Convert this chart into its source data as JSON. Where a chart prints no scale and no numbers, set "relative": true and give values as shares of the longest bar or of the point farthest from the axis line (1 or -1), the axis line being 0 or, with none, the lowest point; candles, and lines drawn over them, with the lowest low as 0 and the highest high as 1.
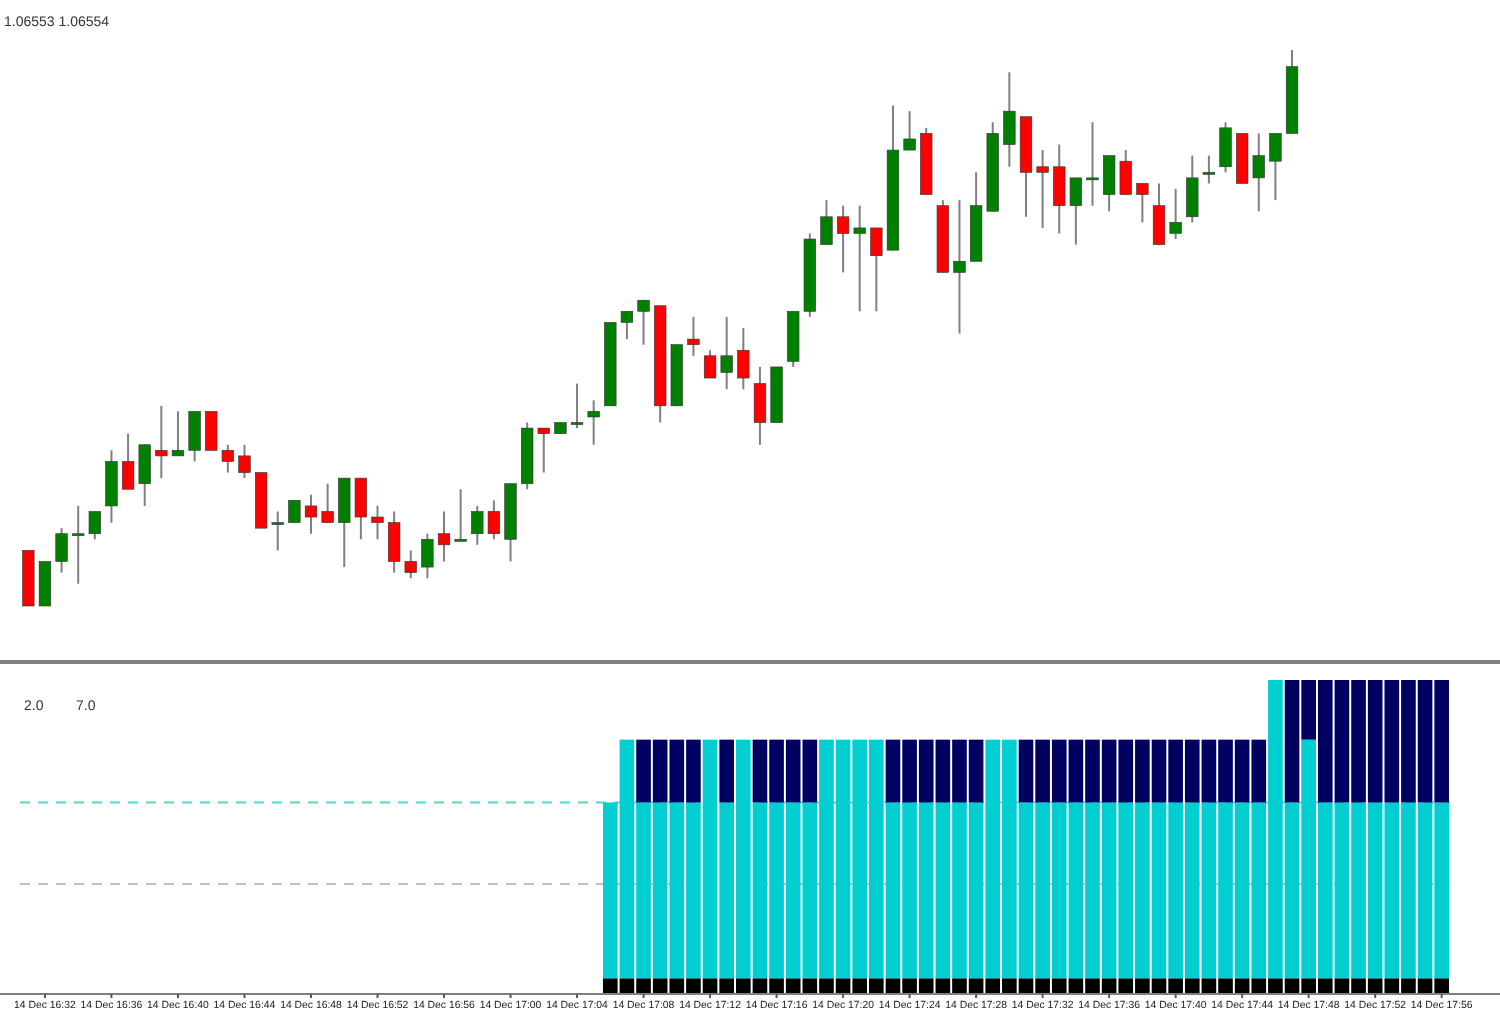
{
  "chart_data": [
    {
      "type": "candlestick",
      "relative": true,
      "tick_labels": false,
      "annotations": [
        "1.06553 1.06554"
      ],
      "categories": [
        null,
        null,
        null,
        null,
        null,
        null,
        null,
        null,
        null,
        null,
        null,
        null,
        null,
        null,
        null,
        null,
        null,
        null,
        null,
        null,
        null,
        null,
        null,
        null,
        null,
        null,
        null,
        null,
        null,
        null,
        null,
        null,
        null,
        null,
        null,
        null,
        null,
        null,
        null,
        null,
        null,
        null,
        null,
        null,
        null,
        null,
        null,
        null,
        null,
        null,
        null,
        null,
        null,
        null,
        null,
        null,
        null,
        null,
        null,
        null,
        null,
        null,
        null,
        null,
        null,
        null,
        null,
        null,
        null,
        null,
        null,
        null,
        null,
        null,
        null,
        null,
        null,
        null,
        null,
        null,
        null,
        null,
        null,
        null,
        null,
        null
      ],
      "ohlc": [
        [
          0.1,
          0.1,
          0,
          0.0
        ],
        [
          0.0,
          0.08,
          0,
          0.08
        ],
        [
          0.08,
          0.14,
          0.06,
          0.13
        ],
        [
          0.13,
          0.18,
          0.04,
          0.13
        ],
        [
          0.13,
          0.17,
          0.12,
          0.17
        ],
        [
          0.18,
          0.28,
          0.15,
          0.26
        ],
        [
          0.26,
          0.31,
          0.21,
          0.21
        ],
        [
          0.22,
          0.29,
          0.18,
          0.29
        ],
        [
          0.28,
          0.36,
          0.23,
          0.27
        ],
        [
          0.27,
          0.35,
          0.27,
          0.28
        ],
        [
          0.28,
          0.35,
          0.26,
          0.35
        ],
        [
          0.35,
          0.35,
          0.28,
          0.28
        ],
        [
          0.28,
          0.29,
          0.24,
          0.26
        ],
        [
          0.27,
          0.29,
          0.23,
          0.24
        ],
        [
          0.24,
          0.24,
          0.14,
          0.14
        ],
        [
          0.15,
          0.17,
          0.1,
          0.15
        ],
        [
          0.15,
          0.19,
          0.15,
          0.19
        ],
        [
          0.18,
          0.2,
          0.13,
          0.16
        ],
        [
          0.17,
          0.22,
          0.15,
          0.15
        ],
        [
          0.15,
          0.23,
          0.07,
          0.23
        ],
        [
          0.23,
          0.23,
          0.12,
          0.16
        ],
        [
          0.16,
          0.18,
          0.12,
          0.15
        ],
        [
          0.15,
          0.17,
          0.06,
          0.08
        ],
        [
          0.08,
          0.1,
          0.05,
          0.06
        ],
        [
          0.07,
          0.13,
          0.05,
          0.12
        ],
        [
          0.13,
          0.17,
          0.08,
          0.11
        ],
        [
          0.12,
          0.21,
          0.12,
          0.12
        ],
        [
          0.13,
          0.18,
          0.11,
          0.17
        ],
        [
          0.17,
          0.19,
          0.12,
          0.13
        ],
        [
          0.12,
          0.22,
          0.08,
          0.22
        ],
        [
          0.22,
          0.33,
          0.21,
          0.32
        ],
        [
          0.32,
          0.32,
          0.24,
          0.31
        ],
        [
          0.31,
          0.33,
          0.31,
          0.33
        ],
        [
          0.33,
          0.4,
          0.32,
          0.33
        ],
        [
          0.34,
          0.37,
          0.29,
          0.35
        ],
        [
          0.36,
          0.51,
          0.36,
          0.51
        ],
        [
          0.51,
          0.53,
          0.48,
          0.53
        ],
        [
          0.53,
          0.55,
          0.47,
          0.55
        ],
        [
          0.54,
          0.54,
          0.33,
          0.36
        ],
        [
          0.36,
          0.47,
          0.36,
          0.47
        ],
        [
          0.48,
          0.52,
          0.45,
          0.47
        ],
        [
          0.45,
          0.46,
          0.41,
          0.41
        ],
        [
          0.42,
          0.52,
          0.39,
          0.45
        ],
        [
          0.46,
          0.5,
          0.39,
          0.41
        ],
        [
          0.4,
          0.43,
          0.29,
          0.33
        ],
        [
          0.33,
          0.43,
          0.33,
          0.43
        ],
        [
          0.44,
          0.53,
          0.43,
          0.53
        ],
        [
          0.53,
          0.67,
          0.52,
          0.66
        ],
        [
          0.65,
          0.73,
          0.65,
          0.7
        ],
        [
          0.7,
          0.72,
          0.6,
          0.67
        ],
        [
          0.67,
          0.72,
          0.53,
          0.68
        ],
        [
          0.68,
          0.68,
          0.53,
          0.63
        ],
        [
          0.64,
          0.9,
          0.64,
          0.82
        ],
        [
          0.82,
          0.89,
          0.82,
          0.84
        ],
        [
          0.85,
          0.86,
          0.74,
          0.74
        ],
        [
          0.72,
          0.73,
          0.6,
          0.6
        ],
        [
          0.6,
          0.73,
          0.49,
          0.62
        ],
        [
          0.62,
          0.78,
          0.62,
          0.72
        ],
        [
          0.71,
          0.87,
          0.71,
          0.85
        ],
        [
          0.83,
          0.96,
          0.79,
          0.89
        ],
        [
          0.88,
          0.88,
          0.7,
          0.78
        ],
        [
          0.79,
          0.82,
          0.68,
          0.78
        ],
        [
          0.79,
          0.83,
          0.67,
          0.72
        ],
        [
          0.72,
          0.77,
          0.65,
          0.77
        ],
        [
          0.77,
          0.87,
          0.72,
          0.77
        ],
        [
          0.74,
          0.81,
          0.71,
          0.81
        ],
        [
          0.8,
          0.82,
          0.74,
          0.74
        ],
        [
          0.76,
          0.76,
          0.69,
          0.74
        ],
        [
          0.72,
          0.76,
          0.65,
          0.65
        ],
        [
          0.67,
          0.75,
          0.66,
          0.69
        ],
        [
          0.7,
          0.81,
          0.69,
          0.77
        ],
        [
          0.78,
          0.81,
          0.76,
          0.78
        ],
        [
          0.79,
          0.87,
          0.78,
          0.86
        ],
        [
          0.85,
          0.85,
          0.76,
          0.76
        ],
        [
          0.77,
          0.85,
          0.71,
          0.81
        ],
        [
          0.8,
          0.85,
          0.73,
          0.85
        ],
        [
          0.85,
          1,
          0.85,
          0.97
        ],
        null,
        null,
        null,
        null,
        null,
        null,
        null,
        null,
        null
      ],
      "colors": [
        "#ff0000",
        "#008000",
        "#008000",
        "#008000",
        "#008000",
        "#008000",
        "#ff0000",
        "#008000",
        "#ff0000",
        "#008000",
        "#008000",
        "#ff0000",
        "#ff0000",
        "#ff0000",
        "#ff0000",
        "#008000",
        "#008000",
        "#ff0000",
        "#ff0000",
        "#008000",
        "#ff0000",
        "#ff0000",
        "#ff0000",
        "#ff0000",
        "#008000",
        "#ff0000",
        "#008000",
        "#008000",
        "#ff0000",
        "#008000",
        "#008000",
        "#ff0000",
        "#008000",
        "#008000",
        "#008000",
        "#008000",
        "#008000",
        "#008000",
        "#ff0000",
        "#008000",
        "#ff0000",
        "#ff0000",
        "#008000",
        "#ff0000",
        "#ff0000",
        "#008000",
        "#008000",
        "#008000",
        "#008000",
        "#ff0000",
        "#008000",
        "#ff0000",
        "#008000",
        "#008000",
        "#ff0000",
        "#ff0000",
        "#008000",
        "#008000",
        "#008000",
        "#008000",
        "#ff0000",
        "#ff0000",
        "#ff0000",
        "#008000",
        "#008000",
        "#008000",
        "#ff0000",
        "#ff0000",
        "#ff0000",
        "#008000",
        "#008000",
        "#008000",
        "#008000",
        "#ff0000",
        "#008000",
        "#008000",
        "#008000",
        null,
        null,
        null,
        null,
        null,
        null,
        null,
        null,
        null
      ]
    },
    {
      "type": "bar",
      "stacked": true,
      "relative": true,
      "tick_labels": "x",
      "annotations": [
        "2.0",
        "7.0"
      ],
      "categories": [
        null,
        "14 Dec 16:32",
        null,
        null,
        null,
        "14 Dec 16:36",
        null,
        null,
        null,
        "14 Dec 16:40",
        null,
        null,
        null,
        "14 Dec 16:44",
        null,
        null,
        null,
        "14 Dec 16:48",
        null,
        null,
        null,
        "14 Dec 16:52",
        null,
        null,
        null,
        "14 Dec 16:56",
        null,
        null,
        null,
        "14 Dec 17:00",
        null,
        null,
        null,
        "14 Dec 17:04",
        null,
        null,
        null,
        "14 Dec 17:08",
        null,
        null,
        null,
        "14 Dec 17:12",
        null,
        null,
        null,
        "14 Dec 17:16",
        null,
        null,
        null,
        "14 Dec 17:20",
        null,
        null,
        null,
        "14 Dec 17:24",
        null,
        null,
        null,
        "14 Dec 17:28",
        null,
        null,
        null,
        "14 Dec 17:32",
        null,
        null,
        null,
        "14 Dec 17:36",
        null,
        null,
        null,
        "14 Dec 17:40",
        null,
        null,
        null,
        "14 Dec 17:44",
        null,
        null,
        null,
        "14 Dec 17:48",
        null,
        null,
        null,
        "14 Dec 17:52",
        null,
        null,
        null,
        "14 Dec 17:56"
      ],
      "series": [
        {
          "color": "#000000",
          "values": [
            null,
            null,
            null,
            null,
            null,
            null,
            null,
            null,
            null,
            null,
            null,
            null,
            null,
            null,
            null,
            null,
            null,
            null,
            null,
            null,
            null,
            null,
            null,
            null,
            null,
            null,
            null,
            null,
            null,
            null,
            null,
            null,
            null,
            null,
            null,
            0.05,
            0.05,
            0.05,
            0.05,
            0.05,
            0.05,
            0.05,
            0.05,
            0.05,
            0.05,
            0.05,
            0.05,
            0.05,
            0.05,
            0.05,
            0.05,
            0.05,
            0.05,
            0.05,
            0.05,
            0.05,
            0.05,
            0.05,
            0.05,
            0.05,
            0.05,
            0.05,
            0.05,
            0.05,
            0.05,
            0.05,
            0.05,
            0.05,
            0.05,
            0.05,
            0.05,
            0.05,
            0.05,
            0.05,
            0.05,
            0.05,
            0.05,
            0.05,
            0.05,
            0.05,
            0.05,
            0.05,
            0.05,
            0.05,
            0.05,
            0.05
          ]
        },
        {
          "color": "#00ced1",
          "values": [
            null,
            null,
            null,
            null,
            null,
            null,
            null,
            null,
            null,
            null,
            null,
            null,
            null,
            null,
            null,
            null,
            null,
            null,
            null,
            null,
            null,
            null,
            null,
            null,
            null,
            null,
            null,
            null,
            null,
            null,
            null,
            null,
            null,
            null,
            null,
            0.56,
            0.76,
            0.56,
            0.56,
            0.56,
            0.56,
            0.76,
            0.56,
            0.76,
            0.56,
            0.56,
            0.56,
            0.56,
            0.76,
            0.76,
            0.76,
            0.76,
            0.56,
            0.56,
            0.56,
            0.56,
            0.56,
            0.56,
            0.76,
            0.76,
            0.56,
            0.56,
            0.56,
            0.56,
            0.56,
            0.56,
            0.56,
            0.56,
            0.56,
            0.56,
            0.56,
            0.56,
            0.56,
            0.56,
            0.56,
            0.95,
            0.56,
            0.76,
            0.56,
            0.56,
            0.56,
            0.56,
            0.56,
            0.56,
            0.56,
            0.56
          ]
        },
        {
          "color": "#000060",
          "values": [
            null,
            null,
            null,
            null,
            null,
            null,
            null,
            null,
            null,
            null,
            null,
            null,
            null,
            null,
            null,
            null,
            null,
            null,
            null,
            null,
            null,
            null,
            null,
            null,
            null,
            null,
            null,
            null,
            null,
            null,
            null,
            null,
            null,
            null,
            null,
            0,
            0,
            0.2,
            0.2,
            0.2,
            0.2,
            0,
            0.2,
            0,
            0.2,
            0.2,
            0.2,
            0.2,
            0,
            0,
            0,
            0,
            0.2,
            0.2,
            0.2,
            0.2,
            0.2,
            0.2,
            0,
            0,
            0.2,
            0.2,
            0.2,
            0.2,
            0.2,
            0.2,
            0.2,
            0.2,
            0.2,
            0.2,
            0.2,
            0.2,
            0.2,
            0.2,
            0.2,
            0,
            0.39,
            0.19,
            0.39,
            0.39,
            0.39,
            0.39,
            0.39,
            0.39,
            0.39,
            0.39
          ]
        }
      ],
      "ref_lines": [
        {
          "axis": "y",
          "value": 0.61,
          "color": "#40e0d0",
          "line_style": "dashed"
        },
        {
          "axis": "y",
          "value": 0.35,
          "color": "#c0c0c0",
          "line_style": "dashed"
        }
      ]
    }
  ]
}
